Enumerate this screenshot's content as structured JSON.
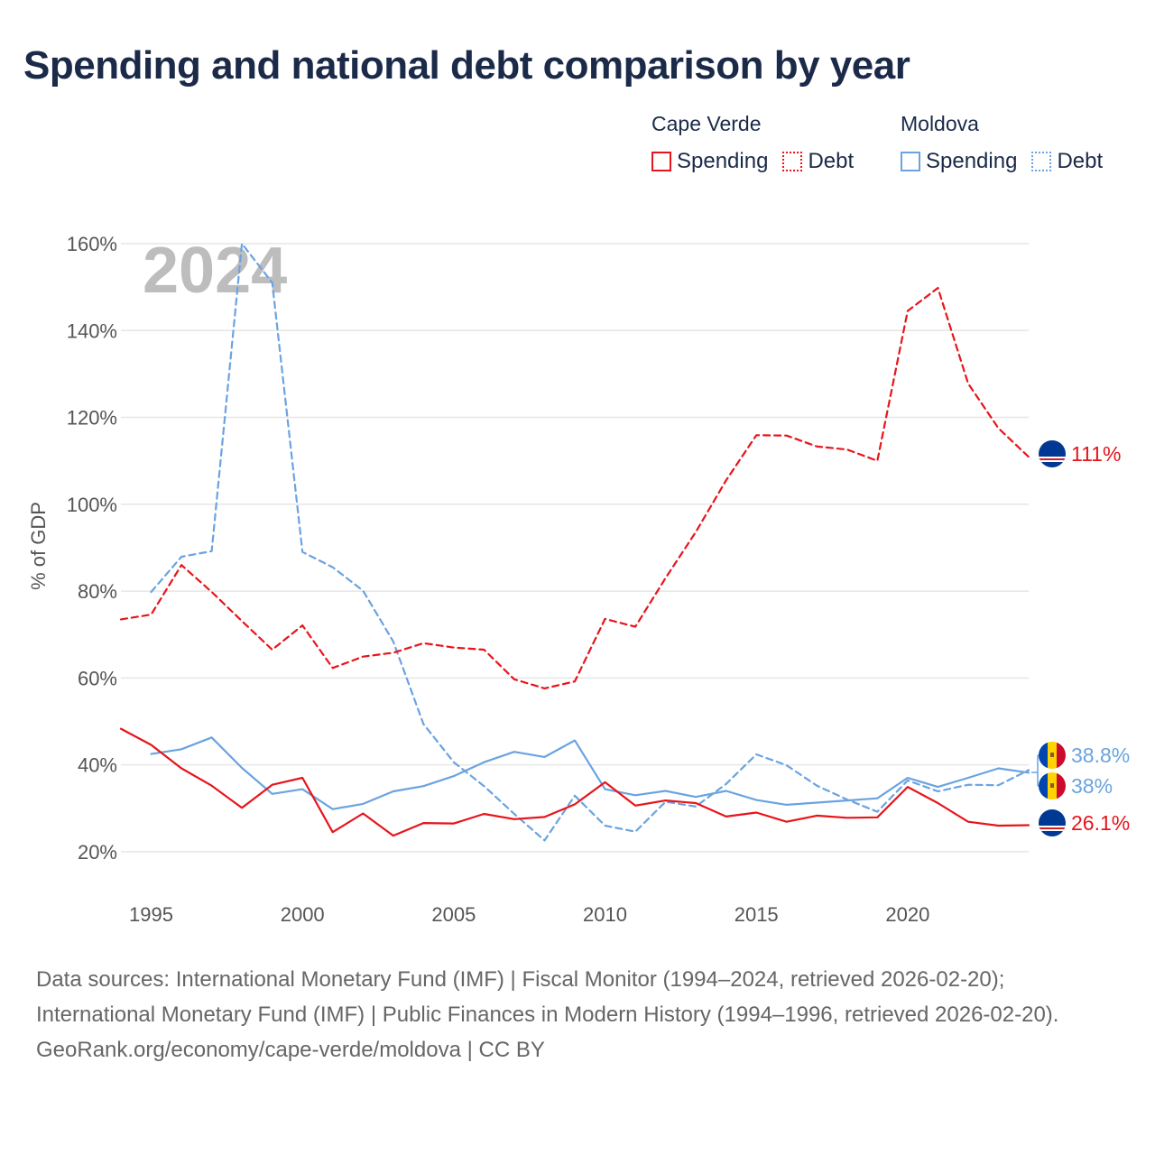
{
  "title": "Spending and national debt comparison by year",
  "year_watermark": "2024",
  "legend": {
    "cape_verde": {
      "name": "Cape Verde",
      "spending": "Spending",
      "debt": "Debt"
    },
    "moldova": {
      "name": "Moldova",
      "spending": "Spending",
      "debt": "Debt"
    }
  },
  "colors": {
    "cape_verde": "#e8141b",
    "moldova": "#6aa3e0",
    "grid": "#e6e6e6",
    "watermark": "#bdbdbd"
  },
  "footer": {
    "sources": "Data sources: International Monetary Fund (IMF) | Fiscal Monitor (1994–2024, retrieved 2026-02-20); International Monetary Fund (IMF) | Public Finances in Modern History (1994–1996, retrieved 2026-02-20).",
    "credit": "GeoRank.org/economy/cape-verde/moldova | CC BY"
  },
  "chart_data": {
    "type": "line",
    "ylabel": "% of GDP",
    "xlabel": "",
    "xlim": [
      1994,
      2024
    ],
    "ylim": [
      10,
      160
    ],
    "yticks": [
      20,
      40,
      60,
      80,
      100,
      120,
      140,
      160
    ],
    "ytick_labels": [
      "20%",
      "40%",
      "60%",
      "80%",
      "100%",
      "120%",
      "140%",
      "160%"
    ],
    "xticks": [
      1995,
      2000,
      2005,
      2010,
      2015,
      2020
    ],
    "xtick_labels": [
      "1995",
      "2000",
      "2005",
      "2010",
      "2015",
      "2020"
    ],
    "series": [
      {
        "name": "Cape Verde Spending",
        "country": "cape_verde",
        "style": "solid",
        "x": [
          1994,
          1995,
          1996,
          1997,
          1998,
          1999,
          2000,
          2001,
          2002,
          2003,
          2004,
          2005,
          2006,
          2007,
          2008,
          2009,
          2010,
          2011,
          2012,
          2013,
          2014,
          2015,
          2016,
          2017,
          2018,
          2019,
          2020,
          2021,
          2022,
          2023,
          2024
        ],
        "values": [
          48.3,
          44.6,
          39.2,
          35.2,
          30.1,
          35.4,
          37,
          24.5,
          28.8,
          23.7,
          26.6,
          26.5,
          28.7,
          27.5,
          28,
          30.9,
          36,
          30.6,
          31.8,
          31.2,
          28.1,
          29,
          26.9,
          28.3,
          27.8,
          27.9,
          34.9,
          31.2,
          26.9,
          26,
          26.1
        ],
        "end_label": "26.1%"
      },
      {
        "name": "Cape Verde Debt",
        "country": "cape_verde",
        "style": "dashed",
        "x": [
          1994,
          1995,
          1996,
          1997,
          1998,
          1999,
          2000,
          2001,
          2002,
          2003,
          2004,
          2005,
          2006,
          2007,
          2008,
          2009,
          2010,
          2011,
          2012,
          2013,
          2014,
          2015,
          2016,
          2017,
          2018,
          2019,
          2020,
          2021,
          2022,
          2023,
          2024
        ],
        "values": [
          73.5,
          74.6,
          86,
          79.8,
          73.1,
          66.5,
          72.1,
          62.3,
          64.9,
          65.8,
          68,
          67,
          66.5,
          59.7,
          57.6,
          59.2,
          73.6,
          71.8,
          83,
          93.6,
          105.5,
          115.9,
          115.8,
          113.3,
          112.6,
          110,
          144.5,
          149.8,
          127.8,
          117.5,
          110.9
        ],
        "end_label": "111%"
      },
      {
        "name": "Moldova Spending",
        "country": "moldova",
        "style": "solid",
        "x": [
          1995,
          1996,
          1997,
          1998,
          1999,
          2000,
          2001,
          2002,
          2003,
          2004,
          2005,
          2006,
          2007,
          2008,
          2009,
          2010,
          2011,
          2012,
          2013,
          2014,
          2015,
          2016,
          2017,
          2018,
          2019,
          2020,
          2021,
          2022,
          2023,
          2024
        ],
        "values": [
          42.5,
          43.6,
          46.3,
          39.3,
          33.3,
          34.4,
          29.8,
          31,
          33.9,
          35.1,
          37.4,
          40.6,
          43,
          41.8,
          45.6,
          34.4,
          33,
          34,
          32.6,
          34,
          31.9,
          30.8,
          31.3,
          31.8,
          32.3,
          37,
          34.9,
          37,
          39.2,
          38.2
        ],
        "end_label": "38%"
      },
      {
        "name": "Moldova Debt",
        "country": "moldova",
        "style": "dashed",
        "x": [
          1995,
          1996,
          1997,
          1998,
          1999,
          2000,
          2001,
          2002,
          2003,
          2004,
          2005,
          2006,
          2007,
          2008,
          2009,
          2010,
          2011,
          2012,
          2013,
          2014,
          2015,
          2016,
          2017,
          2018,
          2019,
          2020,
          2021,
          2022,
          2023,
          2024
        ],
        "values": [
          79.8,
          87.9,
          89.2,
          160,
          151,
          89,
          85.5,
          80.1,
          68.4,
          49.4,
          40.6,
          35.1,
          28.7,
          22.6,
          32.9,
          26,
          24.6,
          31.5,
          30.4,
          35.6,
          42.4,
          39.9,
          35.2,
          32,
          29.2,
          36.4,
          33.9,
          35.4,
          35.3,
          38.8
        ],
        "end_label": "38.8%"
      }
    ]
  }
}
